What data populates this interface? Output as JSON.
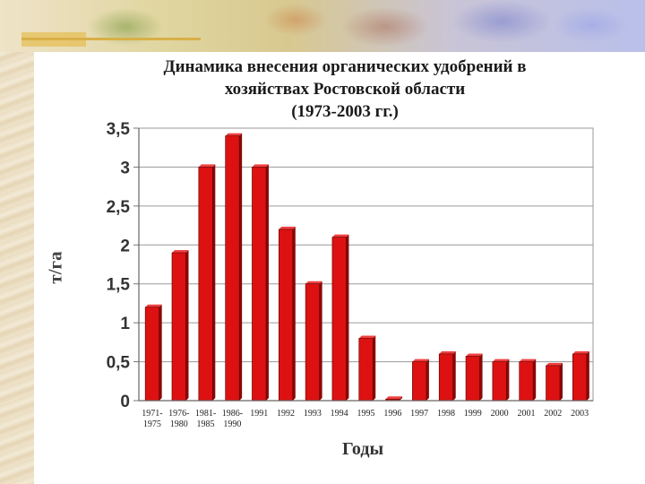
{
  "slide": {
    "background_colors": [
      "#e9dcc0",
      "#b9c0ea"
    ]
  },
  "chart_data": {
    "type": "bar",
    "title_lines": [
      "Динамика внесения органических удобрений в",
      "хозяйствах Ростовской области",
      "(1973-2003 гг.)"
    ],
    "xlabel": "Годы",
    "ylabel": "т/га",
    "ylim": [
      0,
      3.5
    ],
    "yticks": [
      0,
      0.5,
      1,
      1.5,
      2,
      2.5,
      3,
      3.5
    ],
    "ytick_labels": [
      "0",
      "0,5",
      "1",
      "1,5",
      "2",
      "2,5",
      "3",
      "3,5"
    ],
    "grid": true,
    "bar_color": "#dd1111",
    "categories": [
      [
        "1971-",
        "1975"
      ],
      [
        "1976-",
        "1980"
      ],
      [
        "1981-",
        "1985"
      ],
      [
        "1986-",
        "1990"
      ],
      [
        "1991"
      ],
      [
        "1992"
      ],
      [
        "1993"
      ],
      [
        "1994"
      ],
      [
        "1995"
      ],
      [
        "1996"
      ],
      [
        "1997"
      ],
      [
        "1998"
      ],
      [
        "1999"
      ],
      [
        "2000"
      ],
      [
        "2001"
      ],
      [
        "2002"
      ],
      [
        "2003"
      ]
    ],
    "values": [
      1.2,
      1.9,
      3.0,
      3.4,
      3.0,
      2.2,
      1.5,
      2.1,
      0.8,
      0.02,
      0.5,
      0.6,
      0.57,
      0.5,
      0.5,
      0.45,
      0.6
    ]
  }
}
